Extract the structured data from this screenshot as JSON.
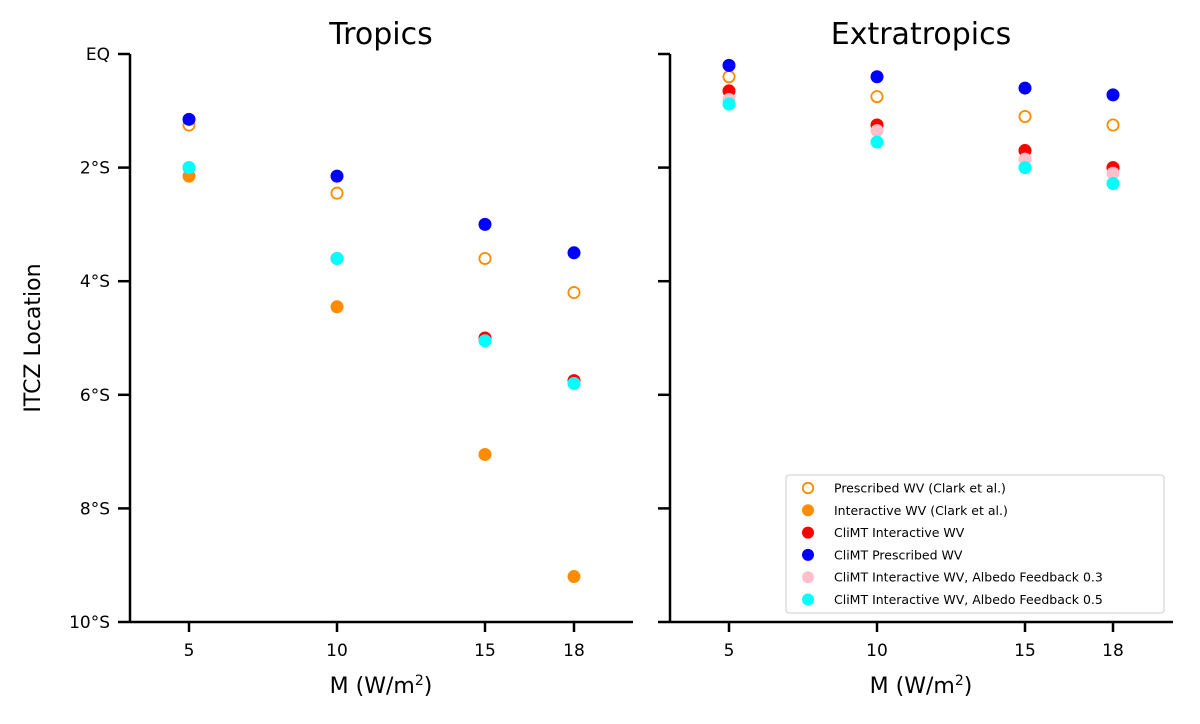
{
  "chart_data": [
    {
      "type": "scatter",
      "panel": "left",
      "title": "Tropics",
      "xlabel": "M (W/m²)",
      "ylabel": "ITCZ Location",
      "x_categories": [
        "5",
        "10",
        "15",
        "18"
      ],
      "ylim": [
        -10,
        0
      ],
      "y_ticks": [
        0,
        -2,
        -4,
        -6,
        -8,
        -10
      ],
      "y_tick_labels": [
        "EQ",
        "2°S",
        "4°S",
        "6°S",
        "8°S",
        "10°S"
      ],
      "series": [
        {
          "name": "Prescribed WV (Clark et al.)",
          "color": "#ff8c00",
          "filled": false,
          "x": [
            5,
            10,
            15,
            18
          ],
          "y": [
            -1.25,
            -2.45,
            -3.6,
            -4.2
          ]
        },
        {
          "name": "Interactive WV (Clark et al.)",
          "color": "#ff8c00",
          "filled": true,
          "x": [
            5,
            10,
            15,
            18
          ],
          "y": [
            -2.15,
            -4.45,
            -7.05,
            -9.2
          ]
        },
        {
          "name": "CliMT Interactive WV",
          "color": "#ff0000",
          "filled": true,
          "x": [
            5,
            10,
            15,
            18
          ],
          "y": [
            -2.0,
            -3.6,
            -5.0,
            -5.75
          ]
        },
        {
          "name": "CliMT Prescribed WV",
          "color": "#0000ff",
          "filled": true,
          "x": [
            5,
            10,
            15,
            18
          ],
          "y": [
            -1.15,
            -2.15,
            -3.0,
            -3.5
          ]
        },
        {
          "name": "CliMT Interactive WV, Albedo Feedback 0.3",
          "color": "#ffc0cb",
          "filled": true,
          "x": [
            5,
            10,
            15,
            18
          ],
          "y": [
            -2.0,
            -3.6,
            -5.05,
            -5.8
          ]
        },
        {
          "name": "CliMT Interactive WV, Albedo Feedback 0.5",
          "color": "#00ffff",
          "filled": true,
          "x": [
            5,
            10,
            15,
            18
          ],
          "y": [
            -2.0,
            -3.6,
            -5.05,
            -5.8
          ]
        }
      ]
    },
    {
      "type": "scatter",
      "panel": "right",
      "title": "Extratropics",
      "xlabel": "M (W/m²)",
      "x_categories": [
        "5",
        "10",
        "15",
        "18"
      ],
      "ylim": [
        -10,
        0
      ],
      "y_ticks": [
        0,
        -2,
        -4,
        -6,
        -8,
        -10
      ],
      "legend_position": "lower-right",
      "series": [
        {
          "name": "Prescribed WV (Clark et al.)",
          "color": "#ff8c00",
          "filled": false,
          "x": [
            5,
            10,
            15,
            18
          ],
          "y": [
            -0.4,
            -0.75,
            -1.1,
            -1.25
          ]
        },
        {
          "name": "Interactive WV (Clark et al.)",
          "color": "#ff8c00",
          "filled": true,
          "x": [
            5,
            10,
            15,
            18
          ],
          "y": [
            -0.65,
            -1.25,
            -1.7,
            -2.0
          ]
        },
        {
          "name": "CliMT Interactive WV",
          "color": "#ff0000",
          "filled": true,
          "x": [
            5,
            10,
            15,
            18
          ],
          "y": [
            -0.65,
            -1.25,
            -1.7,
            -2.0
          ]
        },
        {
          "name": "CliMT Prescribed WV",
          "color": "#0000ff",
          "filled": true,
          "x": [
            5,
            10,
            15,
            18
          ],
          "y": [
            -0.2,
            -0.4,
            -0.6,
            -0.72
          ]
        },
        {
          "name": "CliMT Interactive WV, Albedo Feedback 0.3",
          "color": "#ffc0cb",
          "filled": true,
          "x": [
            5,
            10,
            15,
            18
          ],
          "y": [
            -0.8,
            -1.35,
            -1.85,
            -2.1
          ]
        },
        {
          "name": "CliMT Interactive WV, Albedo Feedback 0.5",
          "color": "#00ffff",
          "filled": true,
          "x": [
            5,
            10,
            15,
            18
          ],
          "y": [
            -0.88,
            -1.55,
            -2.0,
            -2.28
          ]
        }
      ]
    }
  ],
  "legend": {
    "items": [
      {
        "label": "Prescribed WV (Clark et al.)",
        "color": "#ff8c00",
        "filled": false
      },
      {
        "label": "Interactive WV (Clark et al.)",
        "color": "#ff8c00",
        "filled": true
      },
      {
        "label": "CliMT Interactive WV",
        "color": "#ff0000",
        "filled": true
      },
      {
        "label": "CliMT Prescribed WV",
        "color": "#0000ff",
        "filled": true
      },
      {
        "label": "CliMT Interactive WV, Albedo Feedback 0.3",
        "color": "#ffc0cb",
        "filled": true
      },
      {
        "label": "CliMT Interactive WV, Albedo Feedback 0.5",
        "color": "#00ffff",
        "filled": true
      }
    ]
  }
}
